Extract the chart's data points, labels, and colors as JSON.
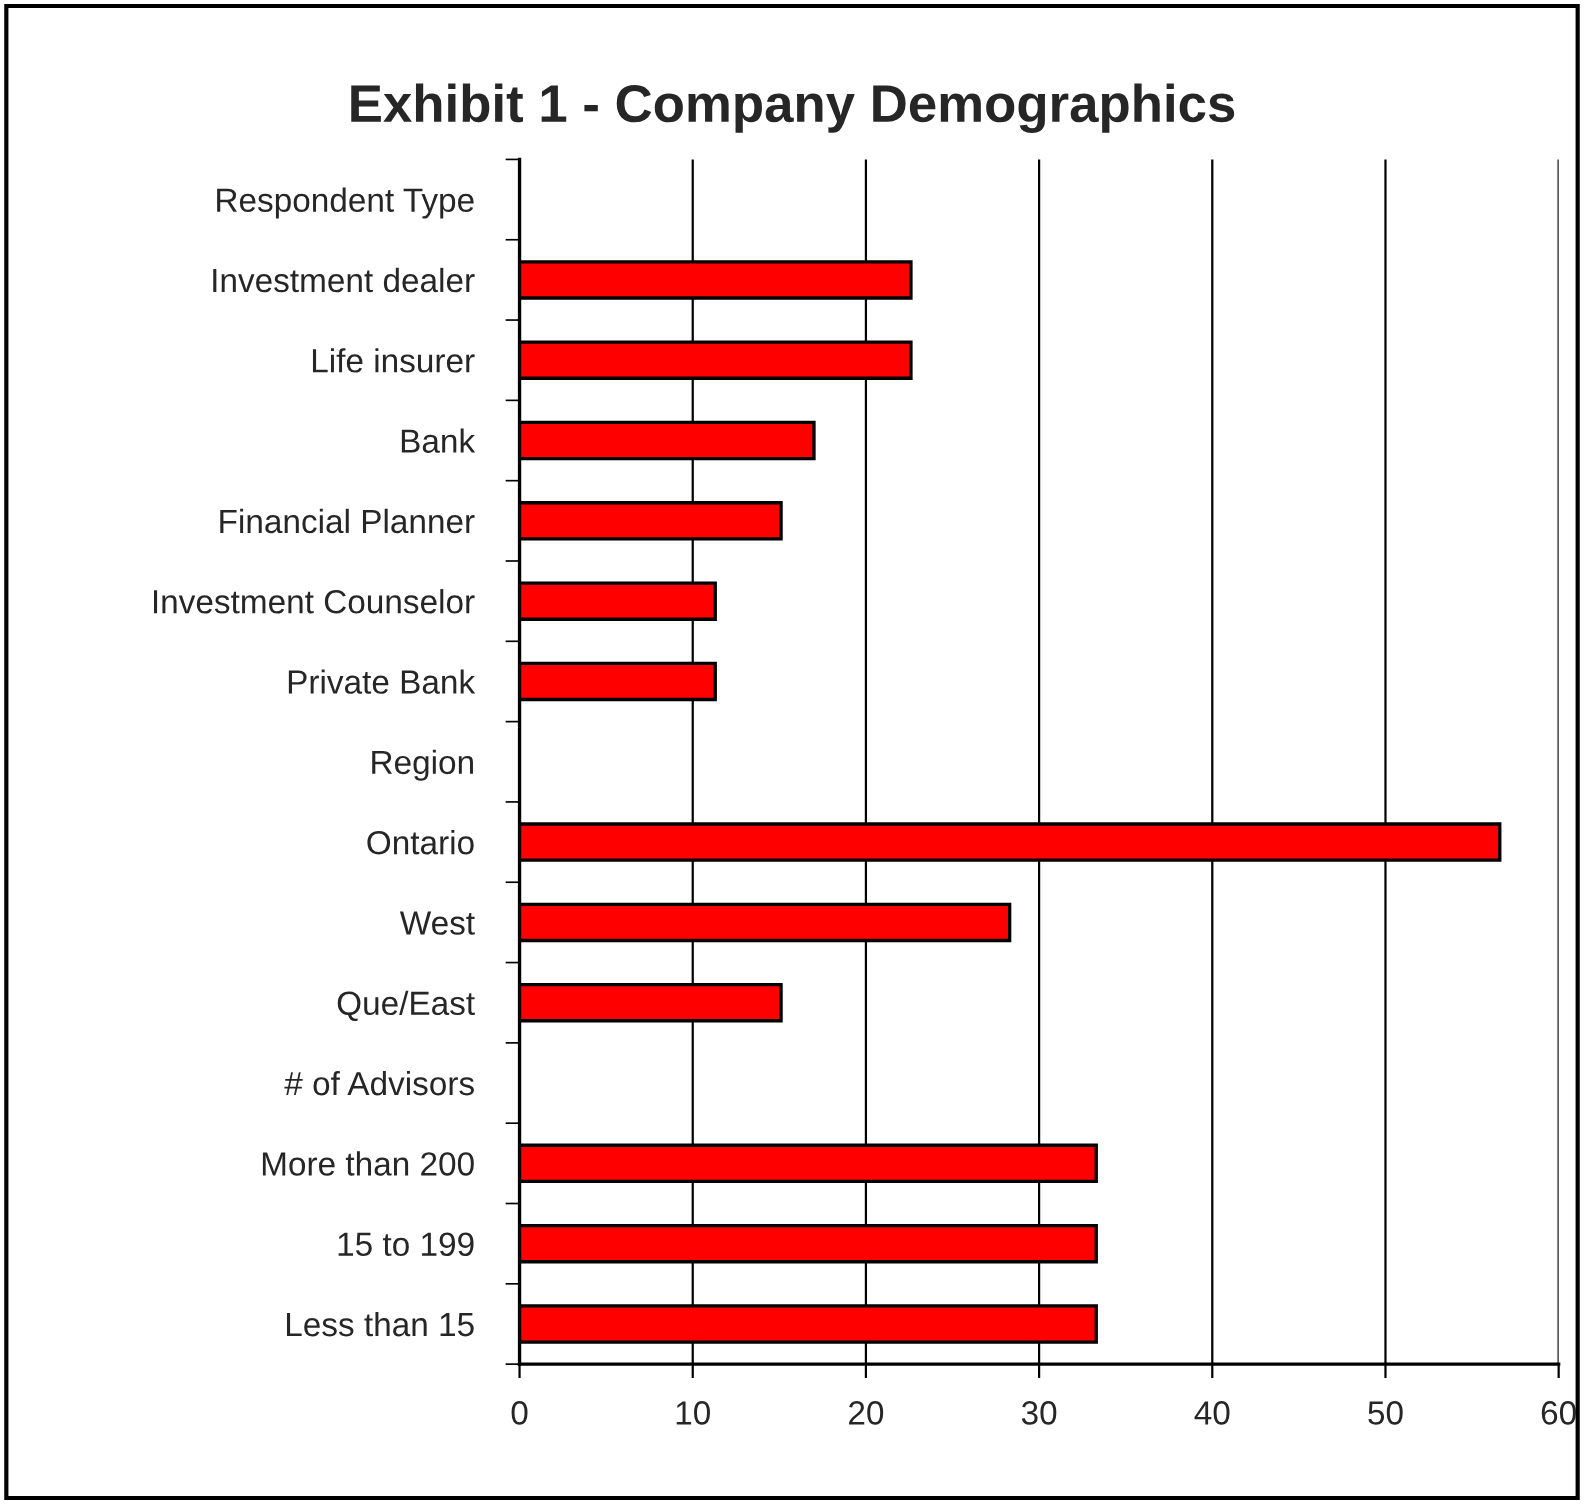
{
  "chart_data": {
    "type": "bar",
    "orientation": "horizontal",
    "title": "Exhibit 1 - Company Demographics",
    "categories": [
      "Respondent Type",
      "Investment dealer",
      "Life insurer",
      "Bank",
      "Financial Planner",
      "Investment Counselor",
      "Private Bank",
      "Region",
      "Ontario",
      "West",
      "Que/East",
      "# of Advisors",
      "More than 200",
      "15 to 199",
      "Less than 15"
    ],
    "values": [
      null,
      22.6,
      22.6,
      17.0,
      15.1,
      11.3,
      11.3,
      null,
      56.6,
      28.3,
      15.1,
      null,
      33.3,
      33.3,
      33.3
    ],
    "color": "#ff0000",
    "xlim": [
      0,
      60
    ],
    "xticks": [
      0,
      10,
      20,
      30,
      40,
      50,
      60
    ],
    "grid": "x"
  }
}
